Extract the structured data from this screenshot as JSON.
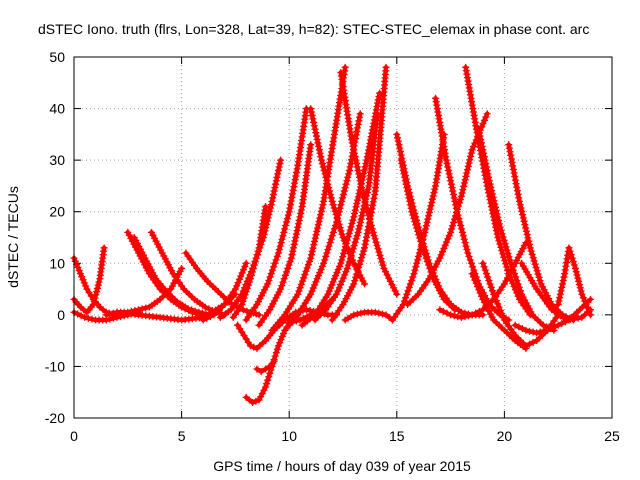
{
  "chart_data": {
    "type": "scatter",
    "title": "dSTEC Iono. truth (flrs, Lon=328, Lat=39, h=82): STEC-STEC_elemax in phase cont. arc",
    "xlabel": "GPS time / hours of day 039 of year 2015",
    "ylabel": "dSTEC  / TECUs",
    "xlim": [
      0,
      25
    ],
    "ylim": [
      -20,
      50
    ],
    "xticks": [
      0,
      5,
      10,
      15,
      20,
      25
    ],
    "yticks": [
      -20,
      -10,
      0,
      10,
      20,
      30,
      40,
      50
    ],
    "grid": true,
    "marker": "+",
    "color": "#ff0000",
    "series": [
      {
        "x": [
          0.0,
          0.3,
          0.6,
          0.9,
          1.2,
          1.5,
          1.9
        ],
        "y": [
          11,
          8,
          5,
          3,
          1.5,
          0.5,
          0
        ]
      },
      {
        "x": [
          0.0,
          0.3,
          0.6,
          0.9,
          1.2,
          1.4
        ],
        "y": [
          3,
          1.5,
          0.5,
          2,
          7,
          13
        ]
      },
      {
        "x": [
          0.0,
          0.5,
          1.0,
          1.5,
          2.0,
          2.5,
          3.0
        ],
        "y": [
          0.5,
          -0.5,
          -1,
          -1,
          -0.5,
          0,
          0.5
        ]
      },
      {
        "x": [
          1.5,
          2.0,
          2.5,
          3.0,
          3.5,
          4.0,
          4.5,
          5.0
        ],
        "y": [
          0,
          0.5,
          0.5,
          1,
          1.5,
          3,
          5,
          9
        ]
      },
      {
        "x": [
          2.5,
          3.0,
          3.5,
          4.0,
          4.5,
          5.0,
          5.5,
          6.0
        ],
        "y": [
          16,
          12,
          8,
          5,
          3,
          1.5,
          0.5,
          0
        ]
      },
      {
        "x": [
          2.8,
          3.3,
          3.8,
          4.3,
          4.8,
          5.3,
          5.8,
          6.3
        ],
        "y": [
          15,
          11,
          7,
          4.5,
          2.5,
          1.2,
          0.5,
          0
        ]
      },
      {
        "x": [
          3.6,
          4.1,
          4.6,
          5.1,
          5.6,
          6.1,
          6.6,
          7.0
        ],
        "y": [
          16,
          12,
          8,
          5,
          3,
          1.5,
          0.5,
          0
        ]
      },
      {
        "x": [
          5.2,
          5.7,
          6.2,
          6.7,
          7.2,
          7.7,
          8.2,
          8.6
        ],
        "y": [
          12,
          9,
          6.5,
          4.5,
          2.5,
          1.2,
          0.5,
          0
        ]
      },
      {
        "x": [
          2.0,
          3.0,
          4.0,
          5.0,
          6.0,
          7.0,
          7.5
        ],
        "y": [
          0.5,
          0,
          -0.5,
          -1,
          -0.5,
          2,
          4
        ]
      },
      {
        "x": [
          6.0,
          6.5,
          7.0,
          7.5,
          8.0
        ],
        "y": [
          -1,
          0,
          2,
          5,
          10
        ]
      },
      {
        "x": [
          8.0,
          8.3,
          8.6,
          8.9,
          9.2,
          9.5,
          9.8,
          10.1,
          10.4
        ],
        "y": [
          -16,
          -17,
          -16.5,
          -14,
          -10,
          -6,
          -3,
          -1,
          0
        ]
      },
      {
        "x": [
          8.5,
          8.7,
          8.9,
          9.1,
          9.3
        ],
        "y": [
          -10.5,
          -11,
          -10.5,
          -10,
          -9
        ]
      },
      {
        "x": [
          7.6,
          7.9,
          8.2,
          8.5,
          8.9,
          9.3,
          9.8,
          10.3,
          10.8,
          11.3,
          11.8,
          12.2
        ],
        "y": [
          -2,
          -4,
          -6,
          -6.5,
          -5,
          -3,
          -1,
          0.5,
          1,
          0.5,
          0,
          0
        ]
      },
      {
        "x": [
          6.8,
          7.3,
          7.8,
          8.3,
          8.8,
          9.2,
          9.6
        ],
        "y": [
          -0.5,
          1,
          4,
          9,
          15,
          22,
          30
        ]
      },
      {
        "x": [
          7.4,
          7.8,
          8.2,
          8.6,
          8.9
        ],
        "y": [
          -0.5,
          2,
          7,
          13,
          21
        ]
      },
      {
        "x": [
          8.0,
          8.5,
          9.0,
          9.5,
          10.0,
          10.4,
          10.8
        ],
        "y": [
          -1,
          2,
          6,
          12,
          20,
          29,
          40
        ]
      },
      {
        "x": [
          8.6,
          9.1,
          9.6,
          10.1,
          10.6,
          11.0
        ],
        "y": [
          -2,
          1,
          5,
          11,
          21,
          33
        ]
      },
      {
        "x": [
          9.2,
          9.8,
          10.4,
          11.0,
          11.6,
          12.1,
          12.6
        ],
        "y": [
          -3,
          0,
          4,
          11,
          22,
          35,
          48
        ]
      },
      {
        "x": [
          9.8,
          10.4,
          11.0,
          11.6,
          12.2,
          12.8,
          13.3
        ],
        "y": [
          -3,
          0,
          4,
          10,
          18,
          28,
          39
        ]
      },
      {
        "x": [
          10.6,
          11.2,
          11.8,
          12.4,
          13.0,
          13.6,
          14.2
        ],
        "y": [
          -2,
          0,
          4,
          10,
          19,
          30,
          43
        ]
      },
      {
        "x": [
          11.2,
          11.7,
          12.2,
          12.7,
          13.2,
          13.7,
          14.1
        ],
        "y": [
          -1,
          1,
          4,
          9,
          16,
          25,
          39
        ]
      },
      {
        "x": [
          12.0,
          12.5,
          13.0,
          13.5,
          14.0,
          14.5
        ],
        "y": [
          -1,
          2,
          6,
          13,
          24,
          48
        ]
      },
      {
        "x": [
          11.0,
          11.5,
          12.0,
          12.5,
          13.0,
          13.5
        ],
        "y": [
          40,
          30,
          22,
          15,
          10,
          6
        ]
      },
      {
        "x": [
          12.4,
          12.9,
          13.4,
          13.9,
          14.4,
          15.0
        ],
        "y": [
          47,
          34,
          24,
          16,
          9,
          4
        ]
      },
      {
        "x": [
          12.6,
          13.0,
          13.5,
          14.0,
          14.5,
          14.8
        ],
        "y": [
          -1,
          0,
          0.5,
          0.5,
          0,
          -1
        ]
      },
      {
        "x": [
          10.0,
          10.5,
          11.0,
          11.5,
          12.0
        ],
        "y": [
          -1.5,
          -1,
          0,
          1,
          3
        ]
      },
      {
        "x": [
          15.0,
          15.5,
          16.0,
          16.5,
          17.0,
          17.5,
          18.0,
          18.5,
          19.0
        ],
        "y": [
          35,
          25,
          17,
          10,
          5,
          2,
          0.5,
          0,
          0
        ]
      },
      {
        "x": [
          15.2,
          15.7,
          16.2,
          16.7,
          17.2,
          17.7
        ],
        "y": [
          30,
          20,
          13,
          7,
          3,
          1
        ]
      },
      {
        "x": [
          14.8,
          15.3,
          15.8,
          16.3,
          16.8,
          17.2
        ],
        "y": [
          -1,
          2,
          8,
          16,
          25,
          35
        ]
      },
      {
        "x": [
          16.8,
          17.3,
          17.8,
          18.3,
          18.8,
          19.3,
          19.8,
          20.2
        ],
        "y": [
          42,
          30,
          20,
          12,
          6,
          2,
          0,
          -1
        ]
      },
      {
        "x": [
          15.5,
          16.0,
          16.5,
          17.0,
          17.5,
          18.0,
          18.5,
          19.2
        ],
        "y": [
          2,
          4,
          7,
          11,
          16,
          23,
          32,
          39
        ]
      },
      {
        "x": [
          18.2,
          18.7,
          19.2,
          19.7,
          20.2,
          20.7,
          21.2
        ],
        "y": [
          48,
          36,
          25,
          15,
          8,
          3,
          0
        ]
      },
      {
        "x": [
          18.8,
          19.3,
          19.8,
          20.3,
          20.8,
          21.3,
          21.8,
          22.3
        ],
        "y": [
          36,
          26,
          17,
          10,
          4,
          0,
          -2,
          -3
        ]
      },
      {
        "x": [
          20.2,
          20.7,
          21.2,
          21.7,
          22.2,
          22.7,
          23.2
        ],
        "y": [
          33,
          22,
          13,
          6,
          2,
          0,
          -1
        ]
      },
      {
        "x": [
          19.0,
          19.5,
          20.0,
          20.5,
          21.0,
          21.5,
          22.0,
          22.5
        ],
        "y": [
          10,
          4,
          -1,
          -4,
          -6,
          -5,
          -3,
          0
        ]
      },
      {
        "x": [
          18.5,
          19.0,
          19.5,
          20.0,
          20.5,
          21.0
        ],
        "y": [
          8,
          3,
          -1,
          -3,
          -5,
          -6.5
        ]
      },
      {
        "x": [
          17.0,
          17.5,
          18.0,
          18.5,
          19.0,
          19.5,
          20.0,
          20.5,
          21.0
        ],
        "y": [
          1,
          0,
          -0.5,
          0,
          1,
          3,
          6,
          10,
          14
        ]
      },
      {
        "x": [
          22.5,
          22.8,
          23.0,
          23.3,
          23.6,
          24.0
        ],
        "y": [
          2,
          8,
          13,
          9,
          4,
          0
        ]
      },
      {
        "x": [
          20.5,
          21.0,
          21.5,
          22.0,
          22.5,
          23.0,
          23.5,
          24.0
        ],
        "y": [
          -2,
          -3,
          -3.5,
          -3,
          -2,
          -1,
          1,
          3
        ]
      },
      {
        "x": [
          20.8,
          21.5,
          22.2,
          22.9,
          23.6,
          24.0
        ],
        "y": [
          10,
          5,
          1,
          -1,
          -0.5,
          1
        ]
      }
    ]
  }
}
